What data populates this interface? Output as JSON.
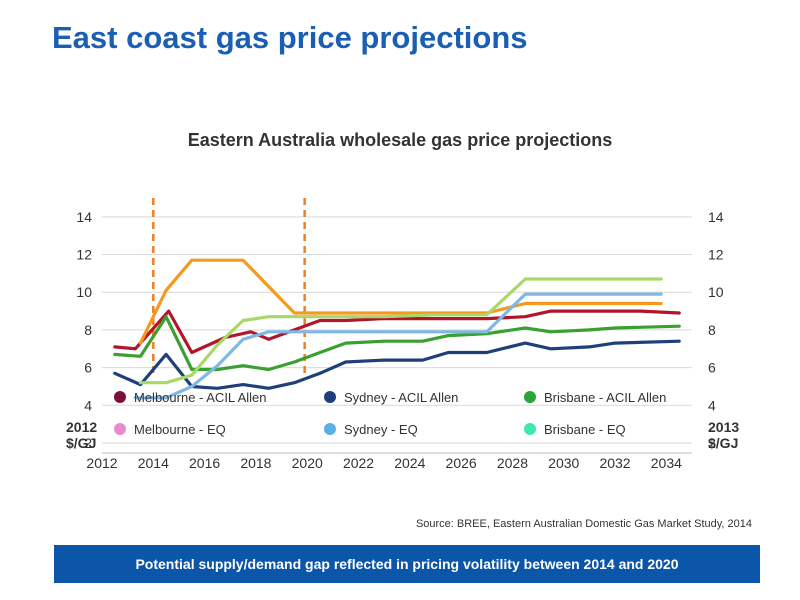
{
  "slide": {
    "title": "East coast gas price projections",
    "source": "Source: BREE, Eastern Australian Domestic Gas Market Study, 2014",
    "banner": "Potential supply/demand gap reflected in pricing volatility between 2014 and 2020"
  },
  "chart_data": {
    "type": "line",
    "title": "Eastern Australia wholesale gas price projections",
    "ylabel_left": "2012 $/GJ",
    "ylabel_right": "2013 $/GJ",
    "xlim": [
      2012,
      2035
    ],
    "ylim": [
      2,
      15
    ],
    "x_ticks": [
      "2012",
      "2014",
      "2016",
      "2018",
      "2020",
      "2022",
      "2024",
      "2026",
      "2028",
      "2030",
      "2032",
      "2034"
    ],
    "y_ticks": [
      "2",
      "4",
      "6",
      "8",
      "10",
      "12",
      "14"
    ],
    "grid": "horizontal",
    "legend_position": "bottom",
    "vlines": [
      {
        "x": 2014,
        "color": "#f07d24"
      },
      {
        "x": 2019.9,
        "color": "#f07d24"
      }
    ],
    "series": [
      {
        "name": "Melbourne - ACIL Allen",
        "color": "#b1162a",
        "legend_marker": "#7d0f3a",
        "points": [
          [
            2012.5,
            7.1
          ],
          [
            2013.3,
            7.0
          ],
          [
            2014.6,
            9.0
          ],
          [
            2015.5,
            6.8
          ],
          [
            2016.8,
            7.6
          ],
          [
            2017.8,
            7.9
          ],
          [
            2018.5,
            7.5
          ],
          [
            2019.5,
            8.0
          ],
          [
            2020.5,
            8.5
          ],
          [
            2021.5,
            8.5
          ],
          [
            2023,
            8.6
          ],
          [
            2025,
            8.6
          ],
          [
            2027,
            8.6
          ],
          [
            2028.5,
            8.7
          ],
          [
            2029.5,
            9.0
          ],
          [
            2031,
            9.0
          ],
          [
            2033,
            9.0
          ],
          [
            2034.5,
            8.9
          ]
        ]
      },
      {
        "name": "Sydney - ACIL Allen",
        "color": "#1f3f7a",
        "legend_marker": "#1f3f7a",
        "points": [
          [
            2012.5,
            5.7
          ],
          [
            2013.5,
            5.1
          ],
          [
            2014.5,
            6.7
          ],
          [
            2015.5,
            5.0
          ],
          [
            2016.5,
            4.9
          ],
          [
            2017.5,
            5.1
          ],
          [
            2018.5,
            4.9
          ],
          [
            2019.5,
            5.2
          ],
          [
            2020.5,
            5.7
          ],
          [
            2021.5,
            6.3
          ],
          [
            2023,
            6.4
          ],
          [
            2024.5,
            6.4
          ],
          [
            2025.5,
            6.8
          ],
          [
            2027,
            6.8
          ],
          [
            2028.5,
            7.3
          ],
          [
            2029.5,
            7.0
          ],
          [
            2031,
            7.1
          ],
          [
            2032,
            7.3
          ],
          [
            2034.5,
            7.4
          ]
        ]
      },
      {
        "name": "Brisbane - ACIL Allen",
        "color": "#3aa030",
        "legend_marker": "#29a638",
        "points": [
          [
            2012.5,
            6.7
          ],
          [
            2013.5,
            6.6
          ],
          [
            2014.5,
            8.7
          ],
          [
            2015.5,
            5.9
          ],
          [
            2016.5,
            5.9
          ],
          [
            2017.5,
            6.1
          ],
          [
            2018.5,
            5.9
          ],
          [
            2019.5,
            6.3
          ],
          [
            2020.5,
            6.8
          ],
          [
            2021.5,
            7.3
          ],
          [
            2023,
            7.4
          ],
          [
            2024.5,
            7.4
          ],
          [
            2025.5,
            7.7
          ],
          [
            2027,
            7.8
          ],
          [
            2028.5,
            8.1
          ],
          [
            2029.5,
            7.9
          ],
          [
            2031,
            8.0
          ],
          [
            2032,
            8.1
          ],
          [
            2034.5,
            8.2
          ]
        ]
      },
      {
        "name": "Melbourne - EQ",
        "color": "#f39a1f",
        "legend_marker": "#e88ad0",
        "points": [
          [
            2013.5,
            7.3
          ],
          [
            2014.5,
            10.1
          ],
          [
            2015.5,
            11.7
          ],
          [
            2017.5,
            11.7
          ],
          [
            2019.5,
            8.9
          ],
          [
            2021,
            8.9
          ],
          [
            2023,
            8.9
          ],
          [
            2025,
            8.9
          ],
          [
            2027,
            8.9
          ],
          [
            2028.5,
            9.4
          ],
          [
            2033.8,
            9.4
          ]
        ]
      },
      {
        "name": "Sydney - EQ",
        "color": "#7fb8e2",
        "legend_marker": "#5aafe6",
        "points": [
          [
            2013.3,
            4.4
          ],
          [
            2014.5,
            4.4
          ],
          [
            2015.5,
            5.0
          ],
          [
            2016.5,
            6.1
          ],
          [
            2017.5,
            7.5
          ],
          [
            2018.5,
            7.9
          ],
          [
            2020.5,
            7.9
          ],
          [
            2023,
            7.9
          ],
          [
            2025,
            7.9
          ],
          [
            2027,
            7.9
          ],
          [
            2028.5,
            9.9
          ],
          [
            2033.8,
            9.9
          ]
        ]
      },
      {
        "name": "Brisbane - EQ",
        "color": "#a7d868",
        "legend_marker": "#3fe8b0",
        "points": [
          [
            2013.5,
            5.2
          ],
          [
            2014.5,
            5.2
          ],
          [
            2015.5,
            5.6
          ],
          [
            2016.5,
            7.2
          ],
          [
            2017.5,
            8.5
          ],
          [
            2018.5,
            8.7
          ],
          [
            2020.5,
            8.7
          ],
          [
            2023,
            8.7
          ],
          [
            2025,
            8.8
          ],
          [
            2027,
            8.8
          ],
          [
            2028.5,
            10.7
          ],
          [
            2033.8,
            10.7
          ]
        ]
      }
    ]
  }
}
